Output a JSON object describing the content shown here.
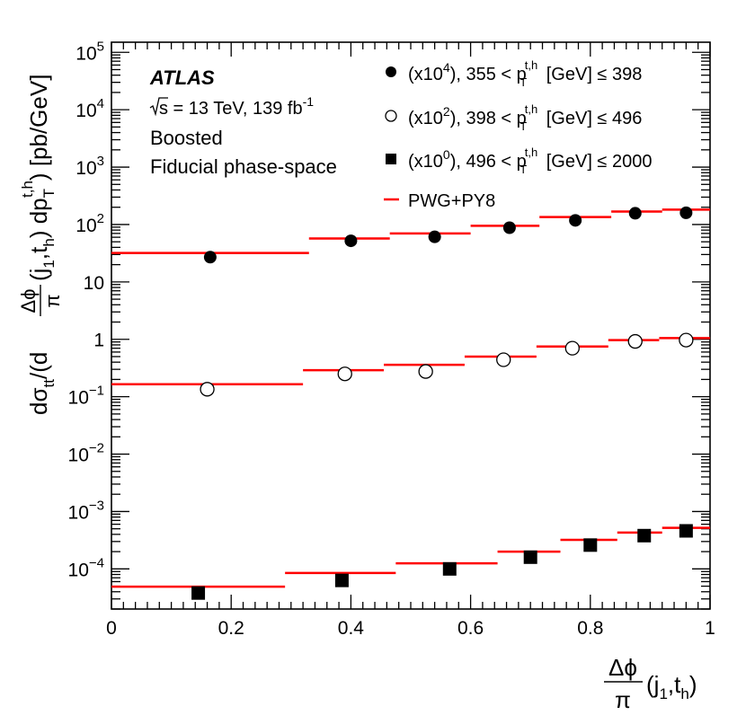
{
  "chart_data": {
    "type": "scatter",
    "title": "ATLAS",
    "annotations": {
      "experiment": "ATLAS",
      "energy_lumi_prefix": "s",
      "energy_lumi_main": " = 13 TeV, 139 fb",
      "energy_lumi_exp": "-1",
      "line2": "Boosted",
      "line3": "Fiducial phase-space"
    },
    "xlabel": {
      "numerator": "Δϕ",
      "denominator": "π",
      "paren_open": "(j",
      "sub1": "1",
      "comma_t": ",t",
      "sub_h": "h",
      "paren_close": ")"
    },
    "ylabel": "dσ_tt / (d(Δϕ/π)(j1,th) dpT^{t,h}) [pb/GeV]",
    "ylabel_parts": {
      "d_sigma": "dσ",
      "tt": "tt",
      "mid": "/(d",
      "frac_num": "Δϕ",
      "frac_den": "π",
      "j_open": "(j",
      "one": "1",
      "ct": ",t",
      "h": "h",
      "close_dp": ") dp",
      "T": "T",
      "th": "t,h",
      "units": ") [pb/GeV]"
    },
    "xlim": [
      0,
      1
    ],
    "ylim": [
      2e-05,
      150000
    ],
    "yscale": "log",
    "x_ticks": [
      {
        "value": 0,
        "label": "0"
      },
      {
        "value": 0.2,
        "label": "0.2"
      },
      {
        "value": 0.4,
        "label": "0.4"
      },
      {
        "value": 0.6,
        "label": "0.6"
      },
      {
        "value": 0.8,
        "label": "0.8"
      },
      {
        "value": 1,
        "label": "1"
      }
    ],
    "y_ticks": [
      {
        "value": 0.0001,
        "base": "10",
        "exp": "−4"
      },
      {
        "value": 0.001,
        "base": "10",
        "exp": "−3"
      },
      {
        "value": 0.01,
        "base": "10",
        "exp": "−2"
      },
      {
        "value": 0.1,
        "base": "10",
        "exp": "−1"
      },
      {
        "value": 1,
        "base": "1",
        "exp": ""
      },
      {
        "value": 10,
        "base": "10",
        "exp": ""
      },
      {
        "value": 100,
        "base": "10",
        "exp": "2"
      },
      {
        "value": 1000,
        "base": "10",
        "exp": "3"
      },
      {
        "value": 10000,
        "base": "10",
        "exp": "4"
      },
      {
        "value": 100000,
        "base": "10",
        "exp": "5"
      }
    ],
    "legend_position": "top-right",
    "legend": [
      {
        "marker": "filled-circle",
        "prefix": "(x10",
        "exp": "4",
        "mid": "), 355 < p",
        "sup": "t,h",
        "sub": "T",
        "suffix": " [GeV] ≤ 398"
      },
      {
        "marker": "open-circle",
        "prefix": "(x10",
        "exp": "2",
        "mid": "), 398 < p",
        "sup": "t,h",
        "sub": "T",
        "suffix": " [GeV] ≤ 496"
      },
      {
        "marker": "filled-square",
        "prefix": "(x10",
        "exp": "0",
        "mid": "), 496 < p",
        "sup": "t,h",
        "sub": "T",
        "suffix": " [GeV] ≤ 2000"
      },
      {
        "marker": "red-line",
        "label": "PWG+PY8"
      }
    ],
    "series": [
      {
        "name": "(x10^4), 355 < pT [GeV] ≤ 398",
        "marker": "filled-circle",
        "points": [
          {
            "x": 0.165,
            "y": 27
          },
          {
            "x": 0.4,
            "y": 52
          },
          {
            "x": 0.54,
            "y": 61
          },
          {
            "x": 0.665,
            "y": 88
          },
          {
            "x": 0.775,
            "y": 118
          },
          {
            "x": 0.875,
            "y": 157
          },
          {
            "x": 0.96,
            "y": 160
          }
        ],
        "prediction": [
          {
            "x0": 0.0,
            "x1": 0.33,
            "y": 32
          },
          {
            "x0": 0.33,
            "x1": 0.465,
            "y": 57
          },
          {
            "x0": 0.465,
            "x1": 0.6,
            "y": 70
          },
          {
            "x0": 0.6,
            "x1": 0.715,
            "y": 95
          },
          {
            "x0": 0.715,
            "x1": 0.835,
            "y": 135
          },
          {
            "x0": 0.835,
            "x1": 0.92,
            "y": 168
          },
          {
            "x0": 0.92,
            "x1": 1.0,
            "y": 182
          }
        ]
      },
      {
        "name": "(x10^2), 398 < pT [GeV] ≤ 496",
        "marker": "open-circle",
        "points": [
          {
            "x": 0.16,
            "y": 0.135
          },
          {
            "x": 0.39,
            "y": 0.25
          },
          {
            "x": 0.525,
            "y": 0.275
          },
          {
            "x": 0.655,
            "y": 0.44
          },
          {
            "x": 0.77,
            "y": 0.7
          },
          {
            "x": 0.875,
            "y": 0.92
          },
          {
            "x": 0.96,
            "y": 0.97
          }
        ],
        "prediction": [
          {
            "x0": 0.0,
            "x1": 0.32,
            "y": 0.165
          },
          {
            "x0": 0.32,
            "x1": 0.455,
            "y": 0.29
          },
          {
            "x0": 0.455,
            "x1": 0.59,
            "y": 0.36
          },
          {
            "x0": 0.59,
            "x1": 0.71,
            "y": 0.5
          },
          {
            "x0": 0.71,
            "x1": 0.83,
            "y": 0.75
          },
          {
            "x0": 0.83,
            "x1": 0.915,
            "y": 0.97
          },
          {
            "x0": 0.915,
            "x1": 1.0,
            "y": 1.05
          }
        ]
      },
      {
        "name": "(x10^0), 496 < pT [GeV] ≤ 2000",
        "marker": "filled-square",
        "points": [
          {
            "x": 0.145,
            "y": 3.8e-05
          },
          {
            "x": 0.385,
            "y": 6.3e-05
          },
          {
            "x": 0.565,
            "y": 0.0001
          },
          {
            "x": 0.7,
            "y": 0.00016
          },
          {
            "x": 0.8,
            "y": 0.00026
          },
          {
            "x": 0.89,
            "y": 0.00038
          },
          {
            "x": 0.96,
            "y": 0.00046
          }
        ],
        "prediction": [
          {
            "x0": 0.0,
            "x1": 0.29,
            "y": 4.9e-05
          },
          {
            "x0": 0.29,
            "x1": 0.475,
            "y": 8.5e-05
          },
          {
            "x0": 0.475,
            "x1": 0.645,
            "y": 0.000125
          },
          {
            "x0": 0.645,
            "x1": 0.75,
            "y": 0.0002
          },
          {
            "x0": 0.75,
            "x1": 0.845,
            "y": 0.00032
          },
          {
            "x0": 0.845,
            "x1": 0.92,
            "y": 0.00043
          },
          {
            "x0": 0.92,
            "x1": 1.0,
            "y": 0.00052
          }
        ]
      }
    ],
    "colors": {
      "prediction": "#ff0000",
      "markers": "#000000",
      "axes": "#000000"
    }
  }
}
